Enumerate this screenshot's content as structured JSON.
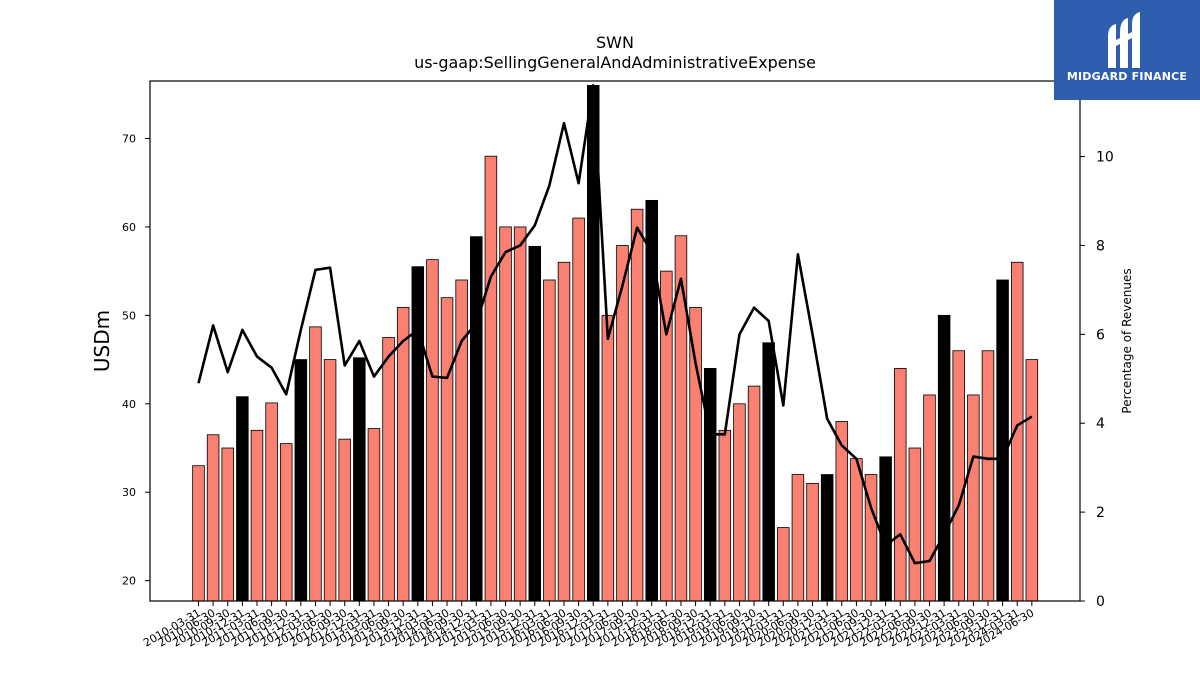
{
  "brand": {
    "name": "MIDGARD FINANCE",
    "logo_icon": "midgard-logo-icon",
    "color": "#2f5eae"
  },
  "chart_data": {
    "type": "bar",
    "title": "SWN",
    "subtitle": "us-gaap:SellingGeneralAndAdministrativeExpense",
    "ylabel": "USDm",
    "y2label": "Percentage of Revenues",
    "ylim": [
      17.7,
      76.5
    ],
    "y2lim": [
      0,
      11.7
    ],
    "yticks": [
      20,
      30,
      40,
      50,
      60,
      70
    ],
    "y2ticks": [
      0,
      2,
      4,
      6,
      8,
      10
    ],
    "bar_color": "#fa8072",
    "highlight_color": "#000000",
    "line_color": "#000000",
    "categories": [
      "2010-03-31",
      "2010-06-30",
      "2010-09-30",
      "2010-12-31",
      "2011-03-31",
      "2011-06-30",
      "2011-09-30",
      "2011-12-31",
      "2012-03-31",
      "2012-06-30",
      "2012-09-30",
      "2012-12-31",
      "2013-03-31",
      "2013-06-30",
      "2013-09-30",
      "2013-12-31",
      "2014-03-31",
      "2014-06-30",
      "2014-09-30",
      "2014-12-31",
      "2015-03-31",
      "2015-06-30",
      "2015-09-30",
      "2015-12-31",
      "2016-03-31",
      "2016-06-30",
      "2016-09-30",
      "2016-12-31",
      "2017-03-31",
      "2017-06-30",
      "2017-09-30",
      "2017-12-31",
      "2018-03-31",
      "2018-06-30",
      "2018-09-30",
      "2018-12-31",
      "2019-03-31",
      "2019-06-30",
      "2019-09-30",
      "2019-12-31",
      "2020-03-31",
      "2020-06-30",
      "2020-09-30",
      "2020-12-31",
      "2021-03-31",
      "2021-06-30",
      "2021-09-30",
      "2021-12-31",
      "2022-03-31",
      "2022-06-30",
      "2022-09-30",
      "2022-12-31",
      "2023-03-31",
      "2023-06-30",
      "2023-09-30",
      "2023-12-31",
      "2024-03-31",
      "2024-06-30"
    ],
    "xtick_labels": [
      "2010-03-31",
      "2010-06-30",
      "2010-09-30",
      "2010-12-31",
      "2011-03-31",
      "2011-06-30",
      "2011-09-30",
      "2011-12-31",
      "2012-03-31",
      "2012-06-30",
      "2012-09-30",
      "2012-12-31",
      "2013-03-31",
      "2013-06-30",
      "2013-09-30",
      "2013-12-31",
      "2014-03-31",
      "2014-06-30",
      "2014-09-30",
      "2014-12-31",
      "2015-03-31",
      "2015-06-30",
      "2015-09-30",
      "2015-12-31",
      "2016-03-31",
      "2016-06-30",
      "2016-09-30",
      "2016-12-31",
      "2017-03-31",
      "2017-06-30",
      "2017-09-30",
      "2017-12-31",
      "2018-03-31",
      "2018-06-30",
      "2018-09-30",
      "2018-12-31",
      "2019-03-31",
      "2019-06-30",
      "2019-09-30",
      "2019-12-31",
      "2020-03-31",
      "2020-06-30",
      "2020-09-30",
      "2020-12-31",
      "2021-03-31",
      "2021-06-30",
      "2021-09-30",
      "2021-12-31",
      "2022-03-31",
      "2022-06-30",
      "2022-09-30",
      "2022-12-31",
      "2023-03-31",
      "2023-06-30",
      "2023-09-30",
      "2023-12-31",
      "2024-03-31",
      "2024-06-30"
    ],
    "series": [
      {
        "type": "bar",
        "values": [
          33,
          36.5,
          35,
          40.8,
          37,
          40.1,
          35.5,
          45,
          48.7,
          45,
          36,
          45.2,
          37.2,
          47.5,
          50.9,
          55.5,
          56.3,
          52,
          54,
          58.9,
          68,
          60,
          60,
          57.8,
          54,
          56,
          61,
          76,
          50,
          57.9,
          62,
          63,
          55,
          59,
          50.9,
          44,
          37,
          40,
          42,
          46.9,
          26,
          32,
          31,
          32,
          38,
          33.8,
          32,
          34,
          44,
          35,
          41,
          50,
          46,
          41,
          46,
          54,
          56,
          45
        ],
        "highlighted": [
          false,
          false,
          false,
          true,
          false,
          false,
          false,
          true,
          false,
          false,
          false,
          true,
          false,
          false,
          false,
          true,
          false,
          false,
          false,
          true,
          false,
          false,
          false,
          true,
          false,
          false,
          false,
          true,
          false,
          false,
          false,
          true,
          false,
          false,
          false,
          true,
          false,
          false,
          false,
          true,
          false,
          false,
          false,
          true,
          false,
          false,
          false,
          true,
          false,
          false,
          false,
          true,
          false,
          false,
          false,
          true,
          false,
          false
        ]
      },
      {
        "type": "line",
        "axis": "right",
        "values": [
          4.9,
          6.2,
          5.15,
          6.1,
          5.5,
          5.25,
          4.65,
          6.1,
          7.45,
          7.5,
          5.3,
          5.85,
          5.05,
          5.5,
          5.85,
          6.1,
          5.05,
          5.02,
          5.85,
          6.25,
          7.3,
          7.85,
          8.0,
          8.45,
          9.35,
          10.75,
          9.4,
          11.6,
          5.9,
          7.1,
          8.4,
          7.85,
          6.0,
          7.25,
          5.35,
          3.75,
          3.75,
          6.0,
          6.6,
          6.3,
          4.4,
          7.8,
          6.0,
          4.1,
          3.5,
          3.2,
          2.1,
          1.25,
          1.5,
          0.85,
          0.9,
          1.5,
          2.15,
          3.25,
          3.2,
          3.2,
          3.95,
          4.15
        ]
      }
    ]
  }
}
